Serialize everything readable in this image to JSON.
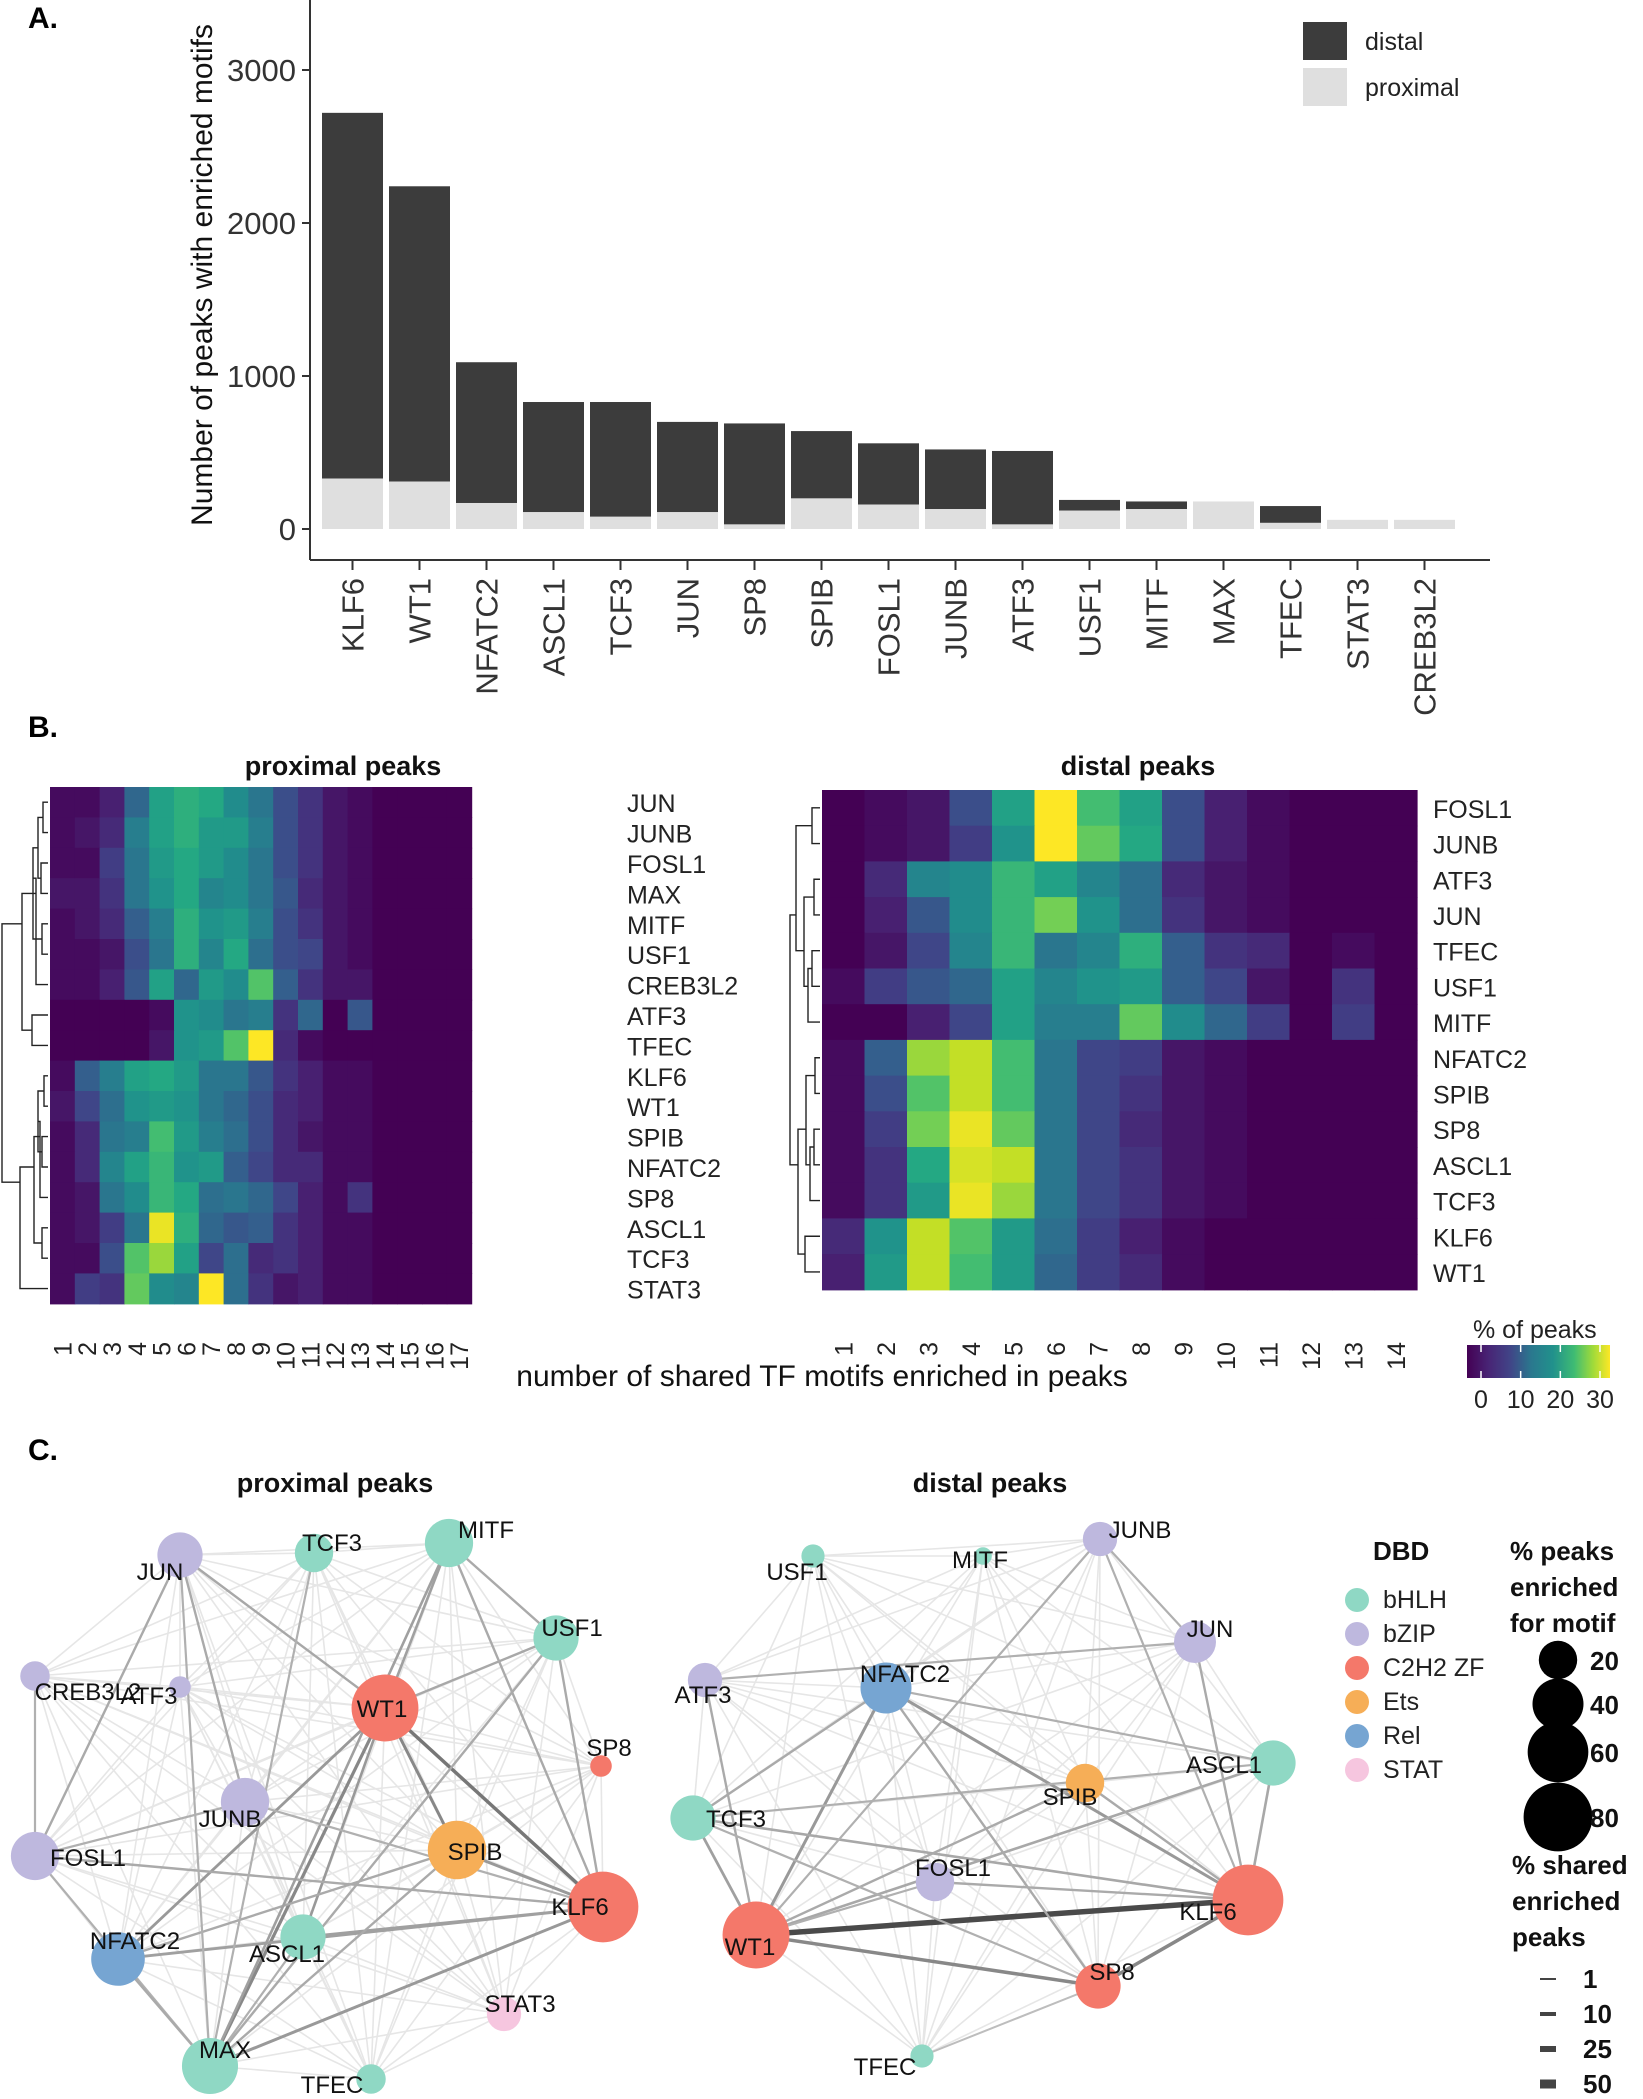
{
  "panels": {
    "a": "A.",
    "b": "B.",
    "c": "C."
  },
  "colors": {
    "distal": "#3c3c3c",
    "proximal": "#dfdfdf",
    "bHLH": "#8fd8c4",
    "bZIP": "#beb8de",
    "C2H2 ZF": "#f4786a",
    "Ets": "#f6ae57",
    "Rel": "#76a5d2",
    "STAT": "#f6c6df"
  },
  "chart_data": [
    {
      "id": "A",
      "type": "bar",
      "stacked": true,
      "categories": [
        "KLF6",
        "WT1",
        "NFATC2",
        "ASCL1",
        "TCF3",
        "JUN",
        "SP8",
        "SPIB",
        "FOSL1",
        "JUNB",
        "ATF3",
        "USF1",
        "MITF",
        "MAX",
        "TFEC",
        "STAT3",
        "CREB3L2"
      ],
      "series": [
        {
          "name": "proximal",
          "values": [
            330,
            310,
            170,
            110,
            80,
            110,
            30,
            200,
            160,
            130,
            30,
            120,
            130,
            180,
            40,
            60,
            60
          ]
        },
        {
          "name": "distal",
          "values": [
            2390,
            1930,
            920,
            720,
            750,
            590,
            660,
            440,
            400,
            390,
            480,
            70,
            50,
            0,
            110,
            0,
            0
          ]
        }
      ],
      "ylabel": "Number of peaks with enriched motifs",
      "xlabel": "",
      "ylim": [
        0,
        3500
      ],
      "yticks": [
        0,
        1000,
        2000,
        3000
      ],
      "legend": [
        "distal",
        "proximal"
      ],
      "legend_position": "top-right"
    },
    {
      "id": "B-proximal",
      "type": "heatmap",
      "title": "proximal peaks",
      "rows": [
        "JUN",
        "JUNB",
        "FOSL1",
        "MAX",
        "MITF",
        "USF1",
        "CREB3L2",
        "ATF3",
        "TFEC",
        "KLF6",
        "WT1",
        "SPIB",
        "NFATC2",
        "SP8",
        "ASCL1",
        "TCF3",
        "STAT3"
      ],
      "columns": [
        "1",
        "2",
        "3",
        "4",
        "5",
        "6",
        "7",
        "8",
        "9",
        "10",
        "11",
        "12",
        "13",
        "14",
        "15",
        "16",
        "17"
      ],
      "values": [
        [
          1,
          1,
          3,
          11,
          19,
          21,
          20,
          16,
          13,
          8,
          5,
          2,
          1,
          0,
          0,
          0,
          0
        ],
        [
          1,
          2,
          4,
          14,
          19,
          21,
          18,
          18,
          14,
          8,
          5,
          2,
          1,
          0,
          0,
          0,
          0
        ],
        [
          1,
          1,
          6,
          13,
          18,
          20,
          18,
          16,
          13,
          8,
          5,
          2,
          1,
          0,
          0,
          0,
          0
        ],
        [
          2,
          2,
          5,
          13,
          17,
          20,
          15,
          16,
          13,
          9,
          4,
          2,
          1,
          0,
          0,
          0,
          0
        ],
        [
          1,
          2,
          4,
          10,
          14,
          21,
          17,
          18,
          14,
          8,
          5,
          2,
          1,
          0,
          0,
          0,
          0
        ],
        [
          1,
          1,
          2,
          8,
          13,
          21,
          15,
          20,
          12,
          8,
          7,
          2,
          1,
          0,
          0,
          0,
          0
        ],
        [
          1,
          1,
          3,
          9,
          19,
          11,
          18,
          16,
          24,
          10,
          5,
          2,
          2,
          0,
          0,
          0,
          0
        ],
        [
          0,
          0,
          0,
          0,
          1,
          17,
          16,
          13,
          14,
          5,
          11,
          0,
          9,
          0,
          0,
          0,
          0
        ],
        [
          0,
          0,
          0,
          0,
          2,
          17,
          18,
          24,
          33,
          4,
          1,
          0,
          0,
          0,
          0,
          0,
          0
        ],
        [
          1,
          10,
          14,
          19,
          20,
          18,
          13,
          13,
          9,
          5,
          3,
          1,
          1,
          0,
          0,
          0,
          0
        ],
        [
          2,
          7,
          12,
          17,
          18,
          17,
          13,
          11,
          8,
          4,
          3,
          1,
          1,
          0,
          0,
          0,
          0
        ],
        [
          1,
          4,
          13,
          14,
          23,
          18,
          14,
          12,
          8,
          4,
          2,
          1,
          1,
          0,
          0,
          0,
          0
        ],
        [
          1,
          4,
          15,
          19,
          22,
          17,
          18,
          10,
          7,
          4,
          4,
          1,
          1,
          0,
          0,
          0,
          0
        ],
        [
          1,
          2,
          13,
          16,
          22,
          20,
          12,
          13,
          11,
          7,
          3,
          1,
          5,
          0,
          0,
          0,
          0
        ],
        [
          1,
          2,
          6,
          13,
          32,
          21,
          11,
          9,
          10,
          5,
          3,
          1,
          1,
          0,
          0,
          0,
          0
        ],
        [
          1,
          1,
          8,
          24,
          28,
          19,
          7,
          12,
          4,
          5,
          3,
          1,
          1,
          0,
          0,
          0,
          0
        ],
        [
          1,
          6,
          5,
          25,
          16,
          15,
          33,
          12,
          5,
          2,
          3,
          1,
          1,
          0,
          0,
          0,
          0
        ]
      ]
    },
    {
      "id": "B-distal",
      "type": "heatmap",
      "title": "distal peaks",
      "rows": [
        "FOSL1",
        "JUNB",
        "ATF3",
        "JUN",
        "TFEC",
        "USF1",
        "MITF",
        "NFATC2",
        "SPIB",
        "SP8",
        "ASCL1",
        "TCF3",
        "KLF6",
        "WT1"
      ],
      "columns": [
        "1",
        "2",
        "3",
        "4",
        "5",
        "6",
        "7",
        "8",
        "9",
        "10",
        "11",
        "12",
        "13",
        "14"
      ],
      "values": [
        [
          0,
          1,
          2,
          8,
          19,
          33,
          23,
          19,
          8,
          3,
          1,
          0,
          0,
          0
        ],
        [
          0,
          1,
          2,
          6,
          17,
          34,
          25,
          20,
          8,
          3,
          1,
          0,
          0,
          0
        ],
        [
          0,
          4,
          15,
          16,
          22,
          19,
          15,
          12,
          4,
          2,
          1,
          0,
          0,
          0
        ],
        [
          0,
          3,
          9,
          16,
          22,
          26,
          17,
          12,
          5,
          2,
          1,
          0,
          0,
          0
        ],
        [
          0,
          2,
          7,
          15,
          22,
          13,
          15,
          21,
          10,
          5,
          4,
          0,
          1,
          0
        ],
        [
          1,
          6,
          9,
          11,
          19,
          15,
          17,
          18,
          10,
          7,
          2,
          0,
          5,
          0
        ],
        [
          0,
          0,
          3,
          7,
          19,
          14,
          14,
          25,
          16,
          11,
          6,
          0,
          6,
          0
        ],
        [
          1,
          10,
          28,
          30,
          23,
          13,
          7,
          6,
          2,
          1,
          0,
          0,
          0,
          0
        ],
        [
          1,
          8,
          24,
          30,
          23,
          13,
          7,
          5,
          2,
          1,
          0,
          0,
          0,
          0
        ],
        [
          1,
          6,
          26,
          32,
          25,
          13,
          7,
          4,
          2,
          1,
          0,
          0,
          0,
          0
        ],
        [
          1,
          5,
          20,
          31,
          30,
          13,
          7,
          5,
          2,
          1,
          0,
          0,
          0,
          0
        ],
        [
          1,
          5,
          18,
          32,
          28,
          13,
          7,
          5,
          2,
          1,
          0,
          0,
          0,
          0
        ],
        [
          4,
          17,
          30,
          24,
          18,
          12,
          6,
          3,
          1,
          0,
          0,
          0,
          0,
          0
        ],
        [
          3,
          18,
          30,
          23,
          18,
          11,
          6,
          4,
          1,
          0,
          0,
          0,
          0,
          0
        ]
      ]
    },
    {
      "id": "C-proximal",
      "type": "network",
      "title": "proximal peaks",
      "nodes": [
        {
          "name": "KLF6",
          "dbd": "C2H2 ZF",
          "pct": 85
        },
        {
          "name": "WT1",
          "dbd": "C2H2 ZF",
          "pct": 75
        },
        {
          "name": "SPIB",
          "dbd": "Ets",
          "pct": 55
        },
        {
          "name": "NFATC2",
          "dbd": "Rel",
          "pct": 45
        },
        {
          "name": "MAX",
          "dbd": "bHLH",
          "pct": 50
        },
        {
          "name": "ASCL1",
          "dbd": "bHLH",
          "pct": 30
        },
        {
          "name": "USF1",
          "dbd": "bHLH",
          "pct": 30
        },
        {
          "name": "MITF",
          "dbd": "bHLH",
          "pct": 35
        },
        {
          "name": "TCF3",
          "dbd": "bHLH",
          "pct": 20
        },
        {
          "name": "TFEC",
          "dbd": "bHLH",
          "pct": 10
        },
        {
          "name": "JUN",
          "dbd": "bZIP",
          "pct": 30
        },
        {
          "name": "JUNB",
          "dbd": "bZIP",
          "pct": 35
        },
        {
          "name": "FOSL1",
          "dbd": "bZIP",
          "pct": 35
        },
        {
          "name": "ATF3",
          "dbd": "bZIP",
          "pct": 4
        },
        {
          "name": "CREB3L2",
          "dbd": "bZIP",
          "pct": 10
        },
        {
          "name": "SP8",
          "dbd": "C2H2 ZF",
          "pct": 4
        },
        {
          "name": "STAT3",
          "dbd": "STAT",
          "pct": 15
        }
      ]
    },
    {
      "id": "C-distal",
      "type": "network",
      "title": "distal peaks",
      "nodes": [
        {
          "name": "KLF6",
          "dbd": "C2H2 ZF",
          "pct": 85
        },
        {
          "name": "WT1",
          "dbd": "C2H2 ZF",
          "pct": 75
        },
        {
          "name": "NFATC2",
          "dbd": "Rel",
          "pct": 40
        },
        {
          "name": "SP8",
          "dbd": "C2H2 ZF",
          "pct": 30
        },
        {
          "name": "TCF3",
          "dbd": "bHLH",
          "pct": 30
        },
        {
          "name": "ASCL1",
          "dbd": "bHLH",
          "pct": 30
        },
        {
          "name": "SPIB",
          "dbd": "Ets",
          "pct": 20
        },
        {
          "name": "JUN",
          "dbd": "bZIP",
          "pct": 25
        },
        {
          "name": "JUNB",
          "dbd": "bZIP",
          "pct": 15
        },
        {
          "name": "ATF3",
          "dbd": "bZIP",
          "pct": 15
        },
        {
          "name": "FOSL1",
          "dbd": "bZIP",
          "pct": 20
        },
        {
          "name": "USF1",
          "dbd": "bHLH",
          "pct": 5
        },
        {
          "name": "MITF",
          "dbd": "bHLH",
          "pct": 2
        },
        {
          "name": "TFEC",
          "dbd": "bHLH",
          "pct": 5
        }
      ]
    }
  ],
  "heatmap_axis_title": "number of shared TF motifs enriched in peaks",
  "colorbar": {
    "title": "% of peaks",
    "ticks": [
      "0",
      "10",
      "20",
      "30"
    ]
  },
  "network_legend": {
    "dbd_title": "DBD",
    "dbd_items": [
      "bHLH",
      "bZIP",
      "C2H2 ZF",
      "Ets",
      "Rel",
      "STAT"
    ],
    "size_title_lines": [
      "% peaks",
      "enriched",
      "for motif"
    ],
    "size_items": [
      "20",
      "40",
      "60",
      "80"
    ],
    "width_title_lines": [
      "% shared",
      "enriched",
      "peaks"
    ],
    "width_items": [
      "1",
      "10",
      "25",
      "50"
    ]
  }
}
